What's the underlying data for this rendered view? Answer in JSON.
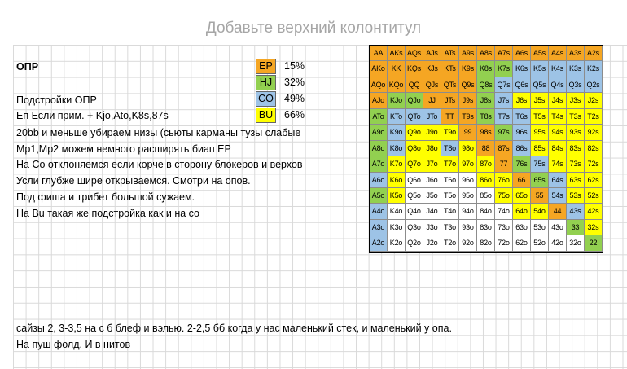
{
  "header": {
    "placeholder": "Добавьте верхний колонтитул"
  },
  "legend": [
    {
      "pos": "EP",
      "pct": "15%",
      "color": "#f5a623"
    },
    {
      "pos": "HJ",
      "pct": "32%",
      "color": "#92d050"
    },
    {
      "pos": "CO",
      "pct": "49%",
      "color": "#9dc3e6"
    },
    {
      "pos": "BU",
      "pct": "66%",
      "color": "#ffff00"
    }
  ],
  "notes": {
    "title": "ОПР",
    "subtitle": "Подстройки ОПР",
    "ep_line": "Еп Если прим. + Kjo,Ato,K8s,87s",
    "lines": [
      "20bb и меньше убираем низы (сьюты карманы тузы слабые",
      "Mp1,Mp2 можем немного расширять биап EP",
      "На Со отклоняемся если корче в сторону блокеров и верхов",
      "Усли глубже шире открываемся. Смотри на опов.",
      "Под фиша и трибет большой сужаем.",
      "На Bu такая же подстройка как и на со"
    ],
    "bottom": [
      "сайзы 2, 3-3,5 на с б блеф и вэлью. 2-2,5 бб когда у нас маленький стек, и маленький у опа.",
      "На пуш фолд.  И в нитов"
    ]
  },
  "colors": {
    "E": "#f5a623",
    "H": "#92d050",
    "C": "#9dc3e6",
    "B": "#ffff00",
    "W": "#ffffff"
  },
  "range_grid": [
    [
      [
        "AA",
        "E"
      ],
      [
        "AKs",
        "E"
      ],
      [
        "AQs",
        "E"
      ],
      [
        "AJs",
        "E"
      ],
      [
        "ATs",
        "E"
      ],
      [
        "A9s",
        "E"
      ],
      [
        "A8s",
        "E"
      ],
      [
        "A7s",
        "E"
      ],
      [
        "A6s",
        "E"
      ],
      [
        "A5s",
        "E"
      ],
      [
        "A4s",
        "E"
      ],
      [
        "A3s",
        "E"
      ],
      [
        "A2s",
        "E"
      ]
    ],
    [
      [
        "AKo",
        "E"
      ],
      [
        "KK",
        "E"
      ],
      [
        "KQs",
        "E"
      ],
      [
        "KJs",
        "E"
      ],
      [
        "KTs",
        "E"
      ],
      [
        "K9s",
        "E"
      ],
      [
        "K8s",
        "H"
      ],
      [
        "K7s",
        "H"
      ],
      [
        "K6s",
        "C"
      ],
      [
        "K5s",
        "C"
      ],
      [
        "K4s",
        "C"
      ],
      [
        "K3s",
        "C"
      ],
      [
        "K2s",
        "C"
      ]
    ],
    [
      [
        "AQo",
        "E"
      ],
      [
        "KQo",
        "E"
      ],
      [
        "QQ",
        "E"
      ],
      [
        "QJs",
        "E"
      ],
      [
        "QTs",
        "E"
      ],
      [
        "Q9s",
        "E"
      ],
      [
        "Q8s",
        "H"
      ],
      [
        "Q7s",
        "C"
      ],
      [
        "Q6s",
        "C"
      ],
      [
        "Q5s",
        "C"
      ],
      [
        "Q4s",
        "C"
      ],
      [
        "Q3s",
        "C"
      ],
      [
        "Q2s",
        "C"
      ]
    ],
    [
      [
        "AJo",
        "E"
      ],
      [
        "KJo",
        "H"
      ],
      [
        "QJo",
        "H"
      ],
      [
        "JJ",
        "E"
      ],
      [
        "JTs",
        "E"
      ],
      [
        "J9s",
        "E"
      ],
      [
        "J8s",
        "H"
      ],
      [
        "J7s",
        "C"
      ],
      [
        "J6s",
        "B"
      ],
      [
        "J5s",
        "B"
      ],
      [
        "J4s",
        "B"
      ],
      [
        "J3s",
        "B"
      ],
      [
        "J2s",
        "B"
      ]
    ],
    [
      [
        "ATo",
        "H"
      ],
      [
        "KTo",
        "C"
      ],
      [
        "QTo",
        "C"
      ],
      [
        "JTo",
        "C"
      ],
      [
        "TT",
        "E"
      ],
      [
        "T9s",
        "E"
      ],
      [
        "T8s",
        "H"
      ],
      [
        "T7s",
        "C"
      ],
      [
        "T6s",
        "C"
      ],
      [
        "T5s",
        "B"
      ],
      [
        "T4s",
        "B"
      ],
      [
        "T3s",
        "B"
      ],
      [
        "T2s",
        "B"
      ]
    ],
    [
      [
        "A9o",
        "H"
      ],
      [
        "K9o",
        "C"
      ],
      [
        "Q9o",
        "B"
      ],
      [
        "J9o",
        "B"
      ],
      [
        "T9o",
        "B"
      ],
      [
        "99",
        "E"
      ],
      [
        "98s",
        "E"
      ],
      [
        "97s",
        "H"
      ],
      [
        "96s",
        "C"
      ],
      [
        "95s",
        "B"
      ],
      [
        "94s",
        "B"
      ],
      [
        "93s",
        "B"
      ],
      [
        "92s",
        "B"
      ]
    ],
    [
      [
        "A8o",
        "H"
      ],
      [
        "K8o",
        "C"
      ],
      [
        "Q8o",
        "B"
      ],
      [
        "J8o",
        "B"
      ],
      [
        "T8o",
        "C"
      ],
      [
        "98o",
        "B"
      ],
      [
        "88",
        "E"
      ],
      [
        "87s",
        "E"
      ],
      [
        "86s",
        "C"
      ],
      [
        "85s",
        "B"
      ],
      [
        "84s",
        "B"
      ],
      [
        "83s",
        "B"
      ],
      [
        "82s",
        "B"
      ]
    ],
    [
      [
        "A7o",
        "H"
      ],
      [
        "K7o",
        "B"
      ],
      [
        "Q7o",
        "B"
      ],
      [
        "J7o",
        "B"
      ],
      [
        "T7o",
        "B"
      ],
      [
        "97o",
        "B"
      ],
      [
        "87o",
        "B"
      ],
      [
        "77",
        "E"
      ],
      [
        "76s",
        "H"
      ],
      [
        "75s",
        "C"
      ],
      [
        "74s",
        "B"
      ],
      [
        "73s",
        "B"
      ],
      [
        "72s",
        "B"
      ]
    ],
    [
      [
        "A6o",
        "C"
      ],
      [
        "K6o",
        "B"
      ],
      [
        "Q6o",
        "W"
      ],
      [
        "J6o",
        "W"
      ],
      [
        "T6o",
        "W"
      ],
      [
        "96o",
        "W"
      ],
      [
        "86o",
        "B"
      ],
      [
        "76o",
        "B"
      ],
      [
        "66",
        "E"
      ],
      [
        "65s",
        "H"
      ],
      [
        "64s",
        "C"
      ],
      [
        "63s",
        "B"
      ],
      [
        "62s",
        "B"
      ]
    ],
    [
      [
        "A5o",
        "H"
      ],
      [
        "K5o",
        "B"
      ],
      [
        "Q5o",
        "W"
      ],
      [
        "J5o",
        "W"
      ],
      [
        "T5o",
        "W"
      ],
      [
        "95o",
        "W"
      ],
      [
        "85o",
        "W"
      ],
      [
        "75o",
        "B"
      ],
      [
        "65o",
        "B"
      ],
      [
        "55",
        "E"
      ],
      [
        "54s",
        "C"
      ],
      [
        "53s",
        "B"
      ],
      [
        "52s",
        "B"
      ]
    ],
    [
      [
        "A4o",
        "C"
      ],
      [
        "K4o",
        "W"
      ],
      [
        "Q4o",
        "W"
      ],
      [
        "J4o",
        "W"
      ],
      [
        "T4o",
        "W"
      ],
      [
        "94o",
        "W"
      ],
      [
        "84o",
        "W"
      ],
      [
        "74o",
        "W"
      ],
      [
        "64o",
        "B"
      ],
      [
        "54o",
        "B"
      ],
      [
        "44",
        "E"
      ],
      [
        "43s",
        "C"
      ],
      [
        "42s",
        "B"
      ]
    ],
    [
      [
        "A3o",
        "C"
      ],
      [
        "K3o",
        "W"
      ],
      [
        "Q3o",
        "W"
      ],
      [
        "J3o",
        "W"
      ],
      [
        "T3o",
        "W"
      ],
      [
        "93o",
        "W"
      ],
      [
        "83o",
        "W"
      ],
      [
        "73o",
        "W"
      ],
      [
        "63o",
        "W"
      ],
      [
        "53o",
        "W"
      ],
      [
        "43o",
        "W"
      ],
      [
        "33",
        "H"
      ],
      [
        "32s",
        "B"
      ]
    ],
    [
      [
        "A2o",
        "C"
      ],
      [
        "K2o",
        "W"
      ],
      [
        "Q2o",
        "W"
      ],
      [
        "J2o",
        "W"
      ],
      [
        "T2o",
        "W"
      ],
      [
        "92o",
        "W"
      ],
      [
        "82o",
        "W"
      ],
      [
        "72o",
        "W"
      ],
      [
        "62o",
        "W"
      ],
      [
        "52o",
        "W"
      ],
      [
        "42o",
        "W"
      ],
      [
        "32o",
        "W"
      ],
      [
        "22",
        "H"
      ]
    ]
  ]
}
